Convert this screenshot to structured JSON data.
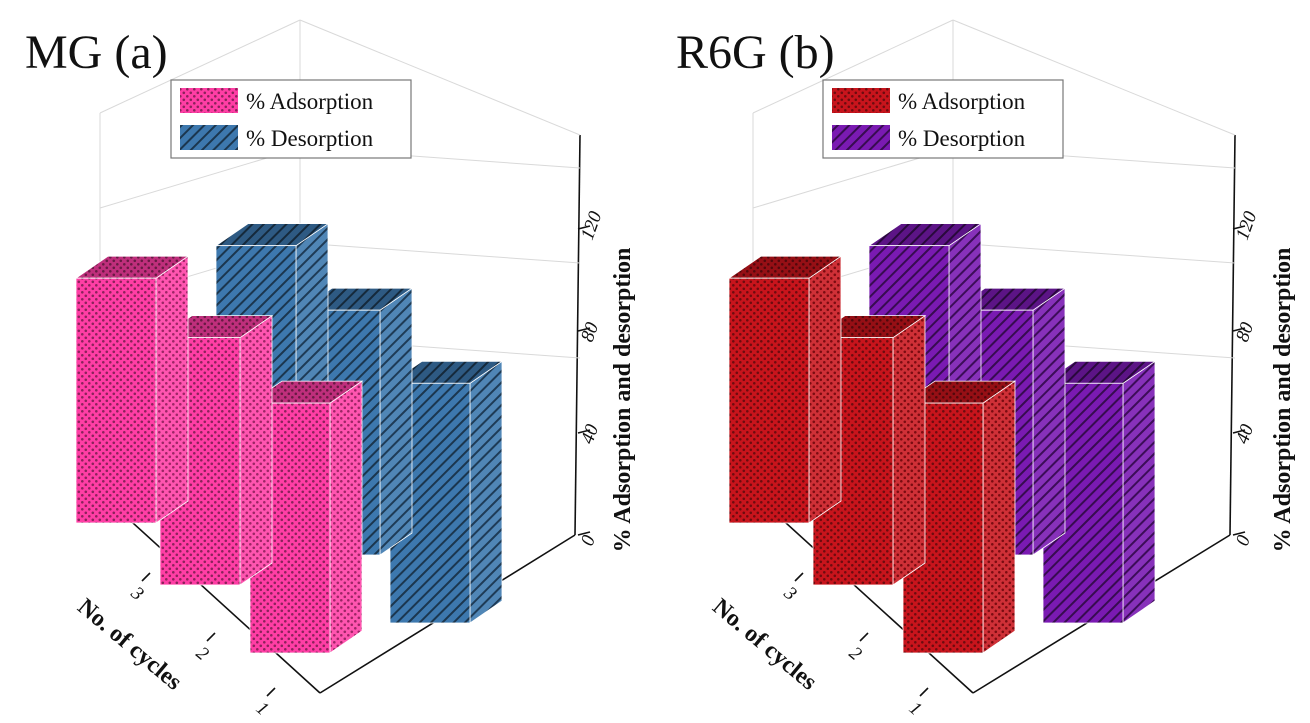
{
  "chart_data": [
    {
      "type": "bar",
      "title": "MG (a)",
      "xlabel": "No. of cycles",
      "ylabel": "% Adsorption and desorption",
      "categories": [
        "1",
        "2",
        "3"
      ],
      "yticks": [
        "0",
        "40",
        "80",
        "120"
      ],
      "ylim": [
        0,
        140
      ],
      "legend_position": "top-center",
      "series": [
        {
          "name": "% Adsorption",
          "values": [
            98,
            97,
            96
          ],
          "color": "#ff3ea5",
          "pattern": "dots"
        },
        {
          "name": "% Desorption",
          "values": [
            94,
            96,
            97
          ],
          "color": "#3d78ae",
          "pattern": "hatch"
        }
      ]
    },
    {
      "type": "bar",
      "title": "R6G (b)",
      "xlabel": "No. of cycles",
      "ylabel": "% Adsorption and desorption",
      "categories": [
        "1",
        "2",
        "3"
      ],
      "yticks": [
        "0",
        "40",
        "80",
        "120"
      ],
      "ylim": [
        0,
        140
      ],
      "legend_position": "top-center",
      "series": [
        {
          "name": "% Adsorption",
          "values": [
            98,
            97,
            96
          ],
          "color": "#c8141c",
          "pattern": "dots"
        },
        {
          "name": "% Desorption",
          "values": [
            94,
            96,
            97
          ],
          "color": "#7a1ab2",
          "pattern": "hatch"
        }
      ]
    }
  ]
}
